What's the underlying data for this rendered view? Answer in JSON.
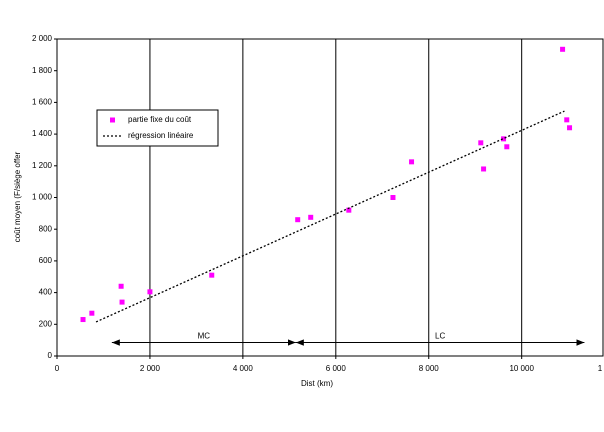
{
  "chart_data": {
    "type": "scatter",
    "x_label": "Dist (km)",
    "y_label": "coût moyen (F/siège offer",
    "xlim": [
      0,
      11750
    ],
    "ylim": [
      0,
      2000
    ],
    "xticks": [
      0,
      {
        "value": 2000,
        "label": "2 000"
      },
      {
        "value": 4000,
        "label": "4 000"
      },
      {
        "value": 6000,
        "label": "6 000"
      },
      {
        "value": 8000,
        "label": "8 000"
      },
      {
        "value": 10000,
        "label": "10 000"
      },
      {
        "value": 12000,
        "label": "1"
      }
    ],
    "yticks": [
      0,
      200,
      400,
      600,
      800,
      {
        "value": 1000,
        "label": "1 000"
      },
      {
        "value": 1200,
        "label": "1 200"
      },
      {
        "value": 1400,
        "label": "1 400"
      },
      {
        "value": 1600,
        "label": "1 600"
      },
      {
        "value": 1800,
        "label": "1 800"
      },
      {
        "value": 2000,
        "label": "2 000"
      }
    ],
    "grid": true,
    "legend": "upper left",
    "series": [
      {
        "name": "partie fixe du coût",
        "color": "#ff00ff",
        "x": [
          560,
          750,
          1380,
          1400,
          2000,
          3330,
          5180,
          5460,
          6280,
          7230,
          7630,
          9120,
          9180,
          9610,
          9680,
          10880,
          10970,
          11030
        ],
        "values": [
          230,
          270,
          440,
          340,
          405,
          510,
          860,
          875,
          920,
          1000,
          1225,
          1345,
          1180,
          1370,
          1320,
          1935,
          1490,
          1440
        ]
      },
      {
        "name": "régression linéaire",
        "color": "#000000",
        "style": "dotted",
        "x": [
          840,
          10920
        ],
        "values": [
          215,
          1545
        ]
      }
    ],
    "annotations": [
      {
        "text": "MC",
        "x": [
          1180,
          5140
        ],
        "y": 85
      },
      {
        "text": "LC",
        "x": [
          5140,
          11350
        ],
        "y": 85
      }
    ]
  }
}
